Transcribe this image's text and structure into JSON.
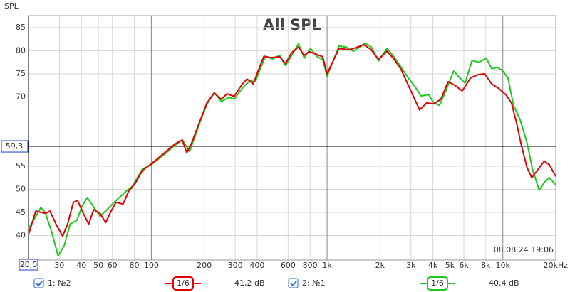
{
  "chart_data": {
    "type": "line",
    "title": "All SPL",
    "y_label": "SPL",
    "timestamp": "08.08.24 19:06",
    "xscale": "log",
    "xlim": [
      20,
      20000
    ],
    "ylim": [
      34.7,
      87.6
    ],
    "grid": true,
    "xticks": [
      30,
      40,
      50,
      60,
      80,
      100,
      200,
      300,
      400,
      600,
      800,
      {
        "value": 1000,
        "label": "1k"
      },
      {
        "value": 2000,
        "label": "2k"
      },
      {
        "value": 3000,
        "label": "3k"
      },
      {
        "value": 4000,
        "label": "4k"
      },
      {
        "value": 5000,
        "label": "5k"
      },
      {
        "value": 6000,
        "label": "6k"
      },
      {
        "value": 8000,
        "label": "8k"
      },
      {
        "value": 10000,
        "label": "10k"
      },
      {
        "value": 20000,
        "label": "20kHz"
      }
    ],
    "yticks": [
      40,
      45,
      50,
      55,
      70,
      75,
      80,
      85
    ],
    "cursor_x": {
      "value": 20,
      "label": "20,0"
    },
    "cursor_y": {
      "value": 59.3,
      "label": "59,3"
    },
    "series": [
      {
        "name": "1: №2",
        "color": "#e00000",
        "smoothing": "1/6",
        "level": "41,2 dB",
        "x": [
          20,
          22,
          25,
          26.5,
          29,
          31.3,
          33.4,
          36,
          38,
          41,
          44,
          47,
          51,
          55,
          59,
          63,
          69,
          74,
          81,
          89,
          100,
          118,
          136,
          150,
          159,
          169,
          189,
          207,
          228,
          250,
          270,
          296,
          325,
          350,
          380,
          405,
          437,
          480,
          537,
          580,
          626,
          688,
          741,
          790,
          860,
          945,
          1000,
          1065,
          1170,
          1345,
          1620,
          1785,
          1960,
          2190,
          2400,
          2640,
          2980,
          3360,
          3690,
          4050,
          4440,
          4880,
          5350,
          5870,
          6550,
          7180,
          7880,
          8650,
          9500,
          10400,
          11200,
          11950,
          12750,
          13700,
          14600,
          15700,
          17200,
          18400,
          20000
        ],
        "values": [
          40.2,
          45.3,
          44.8,
          45.3,
          42.1,
          39.9,
          42.5,
          47.2,
          47.6,
          44.8,
          42.5,
          45.6,
          44.8,
          42.8,
          45.3,
          47.2,
          46.8,
          49.5,
          51.3,
          54.1,
          55.5,
          57.8,
          59.8,
          60.7,
          57.9,
          59.9,
          64.8,
          68.7,
          70.8,
          69.5,
          70.7,
          70.1,
          72.5,
          73.9,
          72.8,
          75.6,
          78.8,
          78.5,
          78.7,
          77.2,
          79.5,
          80.8,
          79.0,
          79.8,
          79.3,
          78.7,
          75.0,
          77.2,
          80.5,
          80.2,
          81.3,
          80.2,
          78.1,
          79.9,
          78.2,
          75.9,
          71.5,
          67.2,
          68.7,
          68.5,
          69.5,
          73.3,
          72.5,
          71.3,
          74.1,
          74.8,
          75.0,
          72.8,
          71.8,
          70.5,
          68.7,
          64.5,
          59.5,
          54.8,
          52.5,
          54.1,
          56.1,
          55.3,
          52.8
        ]
      },
      {
        "name": "2: №1",
        "color": "#1ec81e",
        "smoothing": "1/6",
        "level": "40,4 dB",
        "x": [
          20,
          22,
          23.5,
          25,
          27,
          29.5,
          32,
          34.5,
          37.7,
          40.4,
          43.2,
          46.5,
          51,
          56,
          61.5,
          69,
          78,
          89,
          100,
          118,
          136,
          150,
          165,
          189,
          207,
          228,
          250,
          275,
          296,
          332,
          364,
          390,
          417,
          446,
          490,
          537,
          580,
          640,
          688,
          741,
          805,
          880,
          945,
          1000,
          1075,
          1170,
          1280,
          1410,
          1650,
          1785,
          1960,
          2190,
          2400,
          2640,
          2900,
          3130,
          3430,
          3780,
          4050,
          4360,
          4700,
          5250,
          5700,
          6100,
          6680,
          7320,
          8040,
          8650,
          9330,
          10000,
          10700,
          11500,
          12500,
          13700,
          14800,
          16100,
          17200,
          18400,
          20000
        ],
        "values": [
          41.5,
          44.1,
          46.1,
          44.8,
          41.0,
          35.6,
          37.9,
          42.5,
          43.3,
          46.4,
          48.2,
          46.4,
          44.2,
          45.6,
          47.2,
          49.0,
          50.7,
          54.4,
          55.3,
          57.5,
          59.5,
          60.7,
          58.2,
          64.5,
          68.4,
          71.0,
          69.0,
          69.9,
          69.5,
          72.1,
          73.5,
          73.3,
          76.1,
          78.8,
          78.2,
          79.0,
          76.8,
          79.5,
          81.5,
          78.4,
          80.5,
          78.7,
          78.1,
          74.5,
          77.5,
          81.0,
          80.8,
          79.9,
          81.6,
          80.8,
          77.8,
          80.5,
          78.7,
          76.4,
          74.1,
          72.5,
          70.2,
          70.5,
          68.7,
          68.2,
          71.0,
          75.6,
          74.1,
          73.0,
          77.9,
          77.5,
          78.4,
          76.1,
          76.4,
          75.6,
          74.1,
          68.2,
          65.2,
          60.2,
          54.1,
          49.8,
          51.5,
          52.5,
          51.0
        ]
      }
    ]
  }
}
